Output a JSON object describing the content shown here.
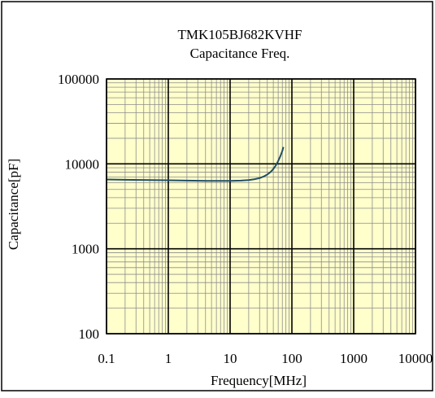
{
  "chart_data": {
    "type": "line",
    "title": "TMK105BJ682KVHF",
    "subtitle": "Capacitance Freq.",
    "xlabel": "Frequency[MHz]",
    "ylabel": "Capacitance[pF]",
    "x_scale": "log",
    "y_scale": "log",
    "xlim": [
      0.1,
      10000
    ],
    "ylim": [
      100,
      100000
    ],
    "x_ticks": [
      0.1,
      1,
      10,
      100,
      1000,
      10000
    ],
    "x_tick_labels": [
      "0.1",
      "1",
      "10",
      "100",
      "1000",
      "10000"
    ],
    "y_ticks": [
      100,
      1000,
      10000,
      100000
    ],
    "y_tick_labels": [
      "100",
      "1000",
      "10000",
      "100000"
    ],
    "grid": true,
    "legend": "none",
    "colors": {
      "plot_background": "#ffffcc",
      "minor_grid": "#8c8c8c",
      "major_grid": "#000000",
      "line": "#1f4e63",
      "frame": "#000000"
    },
    "series": [
      {
        "x": [
          0.1,
          0.2,
          0.5,
          1,
          2,
          5,
          10,
          15,
          20,
          25,
          30,
          35,
          40,
          45,
          50,
          55,
          60,
          65,
          70,
          73
        ],
        "values": [
          6550,
          6500,
          6450,
          6400,
          6350,
          6300,
          6300,
          6350,
          6450,
          6600,
          6800,
          7100,
          7500,
          8000,
          8700,
          9600,
          10800,
          12300,
          14200,
          15800
        ]
      }
    ]
  }
}
